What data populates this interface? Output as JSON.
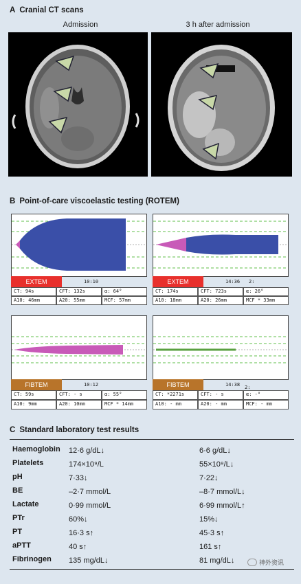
{
  "panel_a": {
    "letter": "A",
    "title": "Cranial CT scans",
    "left_label": "Admission",
    "right_label": "3 h after admission"
  },
  "panel_b": {
    "letter": "B",
    "title": "Point-of-care viscoelastic testing (ROTEM)",
    "tests": [
      {
        "name": "EXTEM",
        "time": "10:10",
        "extra": "",
        "ct": "CT:   94s",
        "cft": "CFT:  132s",
        "alpha": "α:   64°",
        "a10": "A10:  46mm",
        "a20": "A20:  55mm",
        "mcf": "MCF:  57mm",
        "color": "#e8302c"
      },
      {
        "name": "EXTEM",
        "time": "14:36",
        "extra": "2:",
        "ct": "CT:  174s",
        "cft": "CFT:  723s",
        "alpha": "α:   26°",
        "a10": "A10:  18mm",
        "a20": "A20:  26mm",
        "mcf": "MCF *  33mm",
        "color": "#e8302c"
      },
      {
        "name": "FIBTEM",
        "time": "10:12",
        "extra": "",
        "ct": "CT:   59s",
        "cft": "CFT:   - s",
        "alpha": "α:   55°",
        "a10": "A10:   9mm",
        "a20": "A20:  10mm",
        "mcf": "MCF *  14mm",
        "color": "#b8742a"
      },
      {
        "name": "FIBTEM",
        "time": "14:38",
        "extra": "2:",
        "ct": "CT: *2271s",
        "cft": "CFT:   - s",
        "alpha": "α:    -°",
        "a10": "A10:  - mm",
        "a20": "A20:  - mm",
        "mcf": "MCF:  - mm",
        "color": "#b8742a"
      }
    ]
  },
  "panel_c": {
    "letter": "C",
    "title": "Standard laboratory test results",
    "rows": [
      {
        "name": "Haemoglobin",
        "admission": "12·6 g/dL↓",
        "later": "6·6 g/dL↓"
      },
      {
        "name": "Platelets",
        "admission": "174×10⁹/L",
        "later": "55×10⁹/L↓"
      },
      {
        "name": "pH",
        "admission": "7·33↓",
        "later": "7·22↓"
      },
      {
        "name": "BE",
        "admission": "–2·7 mmol/L",
        "later": "–8·7 mmol/L↓"
      },
      {
        "name": "Lactate",
        "admission": "0·99 mmol/L",
        "later": "6·99 mmol/L↑"
      },
      {
        "name": "PTr",
        "admission": "60%↓",
        "later": "15%↓"
      },
      {
        "name": "PT",
        "admission": "16·3 s↑",
        "later": "45·3 s↑"
      },
      {
        "name": "aPTT",
        "admission": "40 s↑",
        "later": "161 s↑"
      },
      {
        "name": "Fibrinogen",
        "admission": "135 mg/dL↓",
        "later": "81 mg/dL↓"
      }
    ],
    "watermark": "神外资讯"
  },
  "colors": {
    "background": "#dde6ef",
    "extem_trace": "#3a4fa8",
    "ct_segment": "#c85ab8",
    "fibtem_trace": "#c85ab8",
    "fibtem_flat": "#5aa040",
    "ref_lines": "#5fbf4a"
  }
}
